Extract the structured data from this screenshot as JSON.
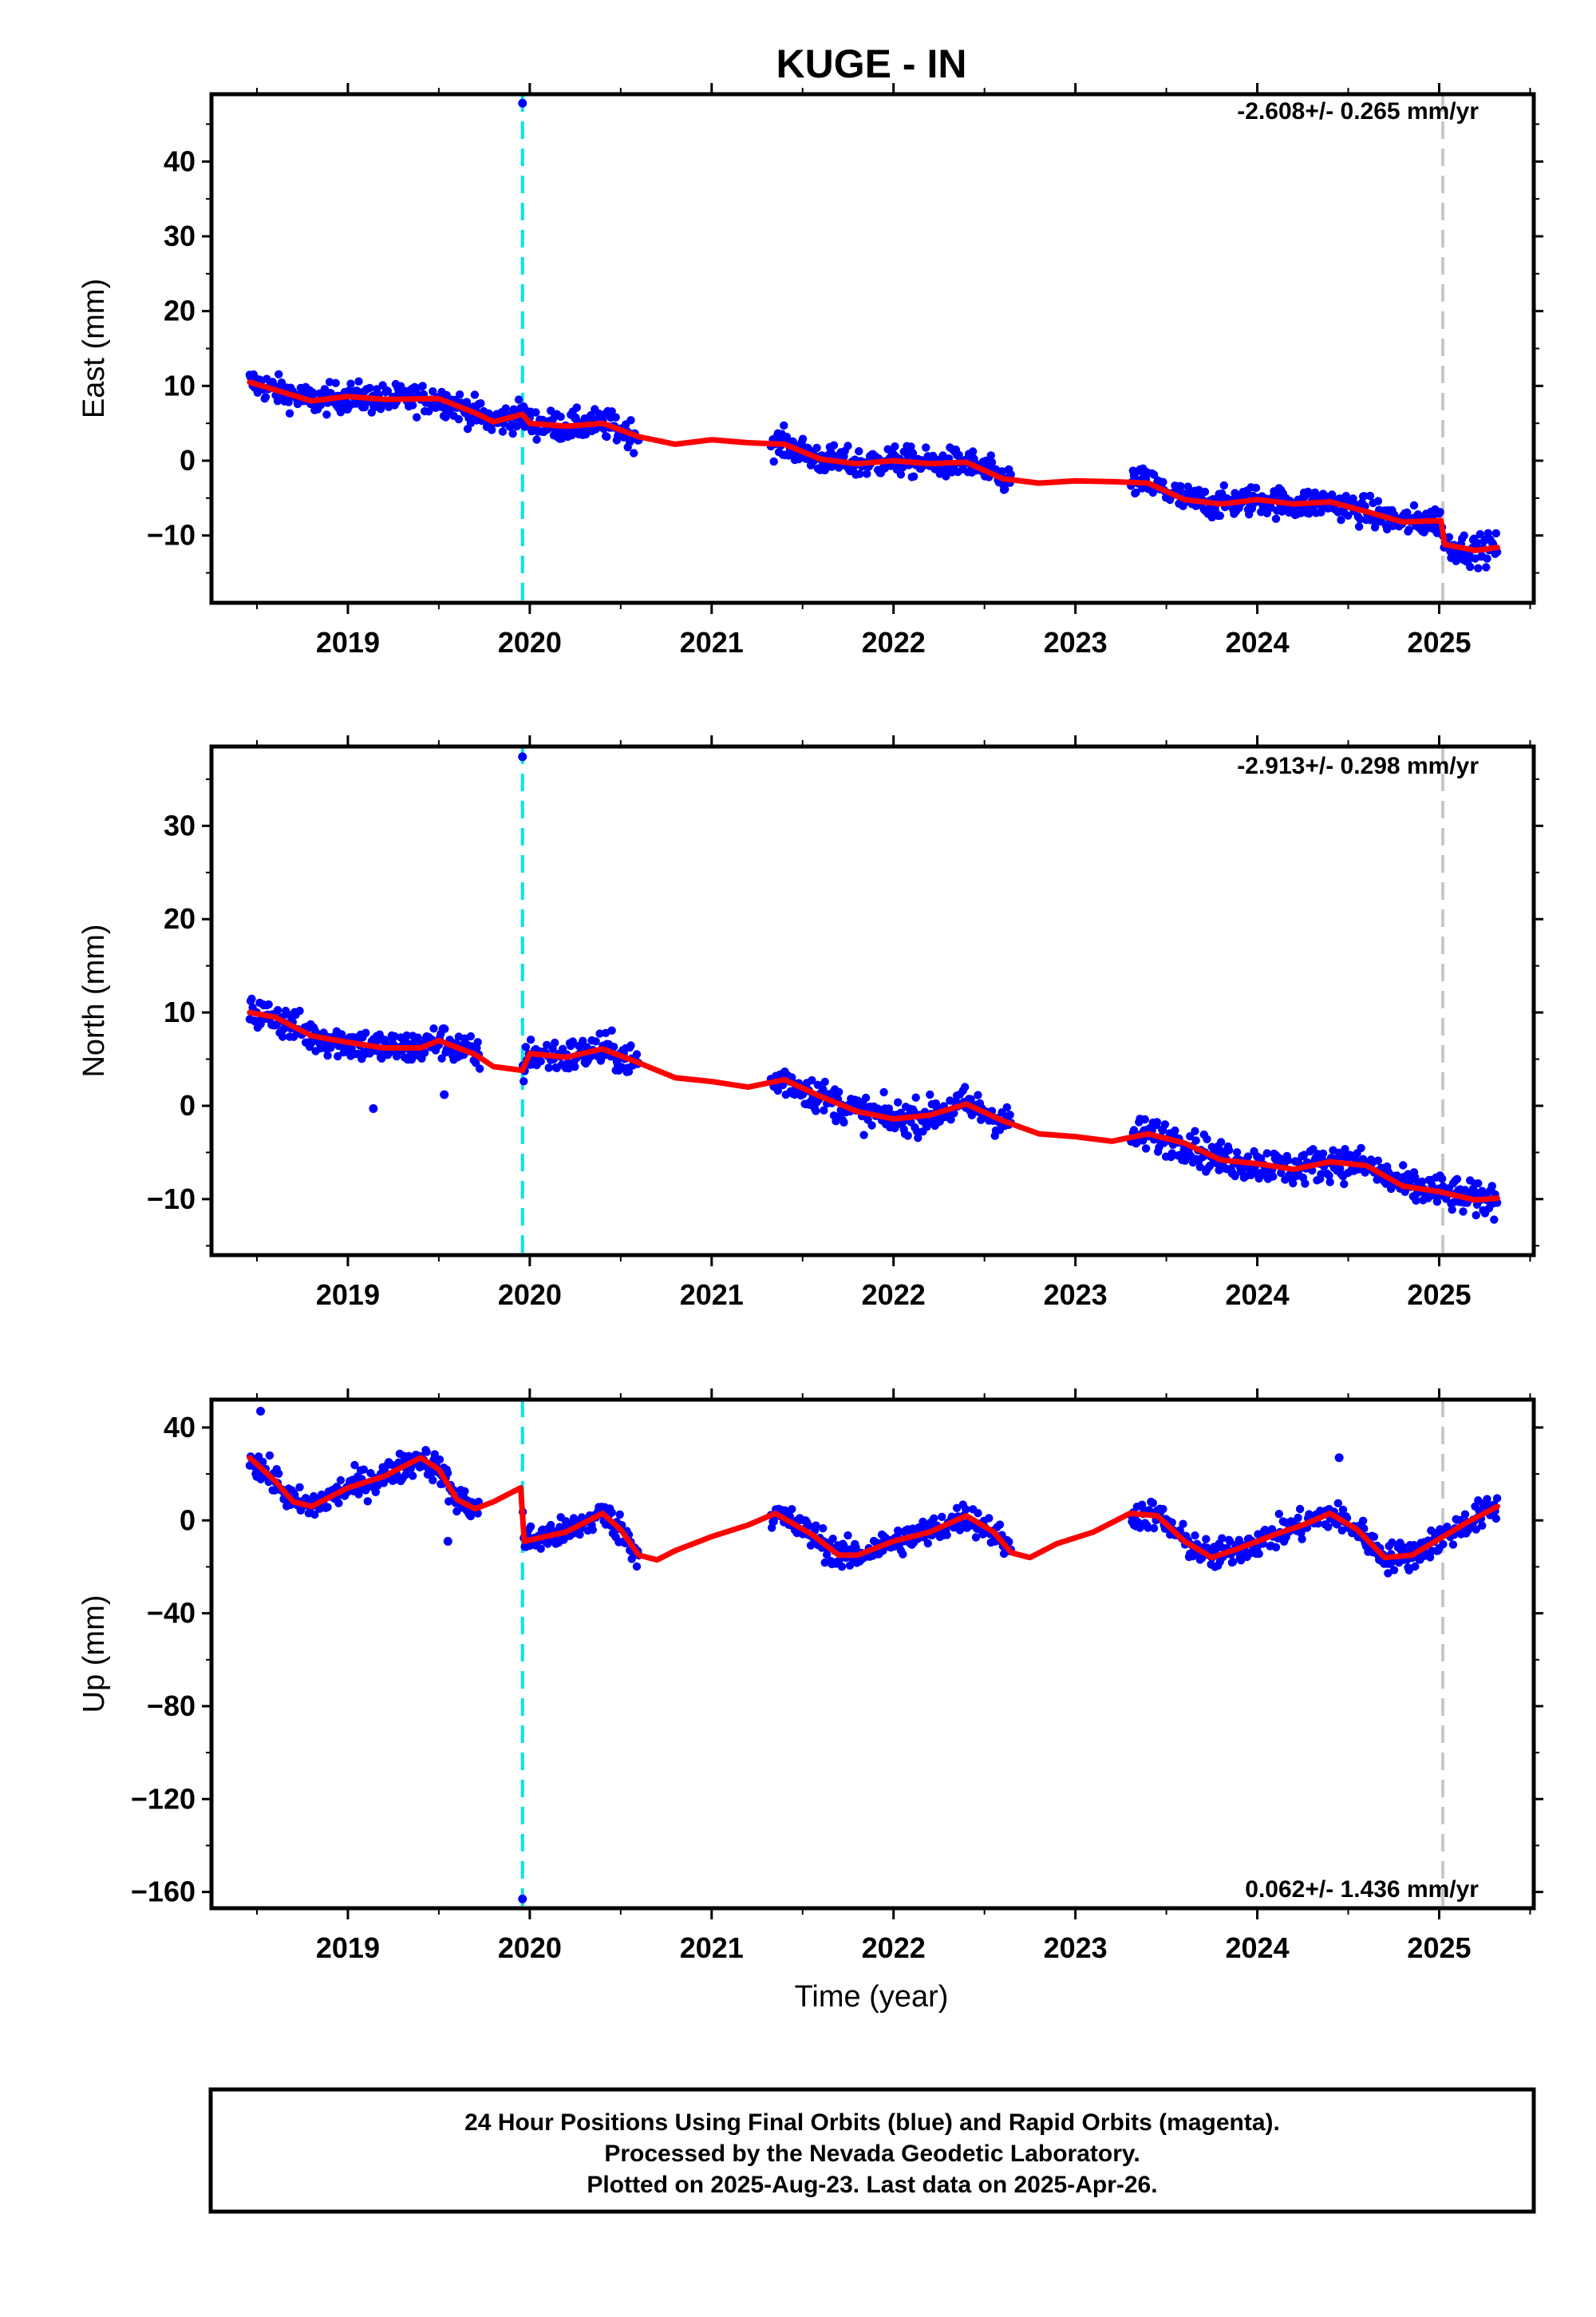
{
  "chart_data": {
    "type": "scatter",
    "title": "KUGE - IN",
    "xlabel": "Time (year)",
    "xlim": [
      2018.25,
      2025.52
    ],
    "x_ticks": [
      "2019",
      "2020",
      "2021",
      "2022",
      "2023",
      "2024",
      "2025"
    ],
    "colors": {
      "final_orbits": "#0000ff",
      "rapid_orbits": "#ff00ff",
      "model": "#ff0000",
      "equipment_change": "#00e5e5",
      "other_event": "#c8c8c8"
    },
    "event_lines": [
      {
        "x": 2019.96,
        "color": "#00e5e5"
      },
      {
        "x": 2025.02,
        "color": "#c8c8c8"
      }
    ],
    "data_span": [
      2018.46,
      2025.32
    ],
    "panels": [
      {
        "name": "east",
        "ylabel": "East (mm)",
        "ylim": [
          -19,
          49
        ],
        "y_ticks": [
          40,
          30,
          20,
          10,
          0,
          -10
        ],
        "y_tick_labels": [
          "40",
          "30",
          "20",
          "10",
          "0",
          "−10"
        ],
        "rate_label": "-2.608+/- 0.265 mm/yr",
        "rate_position": "top-right",
        "scatter_noise_mm": 1.4,
        "gaps": [
          [
            2020.6,
            2021.32
          ],
          [
            2022.65,
            2023.3
          ]
        ],
        "outliers": [
          {
            "x": 2019.96,
            "y": 47.8
          }
        ],
        "model_x": [
          2018.46,
          2018.8,
          2019.0,
          2019.2,
          2019.5,
          2019.7,
          2019.8,
          2019.96,
          2020.0,
          2020.2,
          2020.4,
          2020.6,
          2020.8,
          2021.0,
          2021.2,
          2021.4,
          2021.6,
          2021.8,
          2022.0,
          2022.2,
          2022.4,
          2022.6,
          2022.8,
          2023.0,
          2023.2,
          2023.4,
          2023.6,
          2023.8,
          2024.0,
          2024.2,
          2024.4,
          2024.6,
          2024.8,
          2025.01,
          2025.03,
          2025.2,
          2025.32
        ],
        "model_y": [
          10.5,
          8.0,
          8.6,
          8.2,
          8.3,
          6.4,
          5.2,
          6.2,
          5.0,
          4.6,
          5.0,
          3.2,
          2.2,
          2.8,
          2.4,
          2.2,
          0.2,
          -0.4,
          0.0,
          -0.4,
          -0.2,
          -2.4,
          -3.0,
          -2.7,
          -2.8,
          -3.0,
          -5.2,
          -5.8,
          -5.2,
          -5.8,
          -5.5,
          -6.8,
          -8.2,
          -8.0,
          -11.2,
          -12.0,
          -11.6
        ]
      },
      {
        "name": "north",
        "ylabel": "North (mm)",
        "ylim": [
          -16,
          38.5
        ],
        "y_ticks": [
          30,
          20,
          10,
          0,
          -10
        ],
        "y_tick_labels": [
          "30",
          "20",
          "10",
          "0",
          "−10"
        ],
        "rate_label": "-2.913+/- 0.298 mm/yr",
        "rate_position": "top-right",
        "scatter_noise_mm": 1.3,
        "gaps": [
          [
            2019.73,
            2019.96
          ],
          [
            2020.6,
            2021.32
          ],
          [
            2022.65,
            2023.3
          ]
        ],
        "outliers": [
          {
            "x": 2019.96,
            "y": 37.4
          },
          {
            "x": 2019.14,
            "y": -0.3
          },
          {
            "x": 2019.53,
            "y": 1.2
          }
        ],
        "model_x": [
          2018.46,
          2018.6,
          2018.8,
          2019.0,
          2019.2,
          2019.4,
          2019.5,
          2019.7,
          2019.8,
          2019.96,
          2020.0,
          2020.2,
          2020.4,
          2020.6,
          2020.8,
          2021.0,
          2021.2,
          2021.4,
          2021.6,
          2021.8,
          2022.0,
          2022.2,
          2022.4,
          2022.6,
          2022.8,
          2023.0,
          2023.2,
          2023.4,
          2023.6,
          2023.8,
          2024.0,
          2024.2,
          2024.4,
          2024.6,
          2024.8,
          2025.0,
          2025.2,
          2025.32
        ],
        "model_y": [
          10.0,
          9.5,
          7.5,
          6.8,
          6.2,
          6.2,
          7.0,
          5.5,
          4.2,
          3.8,
          5.6,
          5.2,
          6.1,
          4.6,
          3.0,
          2.6,
          2.0,
          2.8,
          1.0,
          -0.6,
          -1.4,
          -1.0,
          0.2,
          -1.6,
          -3.0,
          -3.3,
          -3.8,
          -3.0,
          -4.0,
          -5.8,
          -6.2,
          -6.8,
          -6.0,
          -6.4,
          -8.6,
          -9.2,
          -10.1,
          -9.9
        ]
      },
      {
        "name": "up",
        "ylabel": "Up (mm)",
        "ylim": [
          -167,
          52
        ],
        "y_ticks": [
          40,
          0,
          -40,
          -80,
          -120,
          -160
        ],
        "y_tick_labels": [
          "40",
          "0",
          "−40",
          "−80",
          "−120",
          "−160"
        ],
        "rate_label": "0.062+/- 1.436 mm/yr",
        "rate_position": "bottom-right",
        "scatter_noise_mm": 4.5,
        "gaps": [
          [
            2019.72,
            2019.96
          ],
          [
            2020.6,
            2021.32
          ],
          [
            2022.65,
            2023.3
          ]
        ],
        "outliers": [
          {
            "x": 2019.96,
            "y": -163.0
          },
          {
            "x": 2018.52,
            "y": 47.0
          },
          {
            "x": 2019.55,
            "y": -9.0
          },
          {
            "x": 2024.45,
            "y": 27.0
          }
        ],
        "model_x": [
          2018.46,
          2018.6,
          2018.7,
          2018.8,
          2019.0,
          2019.2,
          2019.4,
          2019.5,
          2019.6,
          2019.7,
          2019.8,
          2019.95,
          2019.97,
          2020.2,
          2020.4,
          2020.5,
          2020.6,
          2020.7,
          2020.8,
          2021.0,
          2021.2,
          2021.35,
          2021.55,
          2021.7,
          2021.8,
          2022.0,
          2022.2,
          2022.4,
          2022.55,
          2022.65,
          2022.75,
          2022.9,
          2023.1,
          2023.3,
          2023.45,
          2023.6,
          2023.75,
          2023.9,
          2024.1,
          2024.25,
          2024.4,
          2024.55,
          2024.7,
          2024.85,
          2025.0,
          2025.15,
          2025.32
        ],
        "model_y": [
          27,
          17,
          8,
          6,
          14,
          19,
          27,
          22,
          9,
          5,
          8,
          14,
          -9,
          -5,
          3,
          -4,
          -15,
          -17,
          -13,
          -7,
          -2,
          3,
          -6,
          -15,
          -15,
          -9,
          -5,
          2,
          -5,
          -14,
          -16,
          -10,
          -5,
          3,
          2,
          -9,
          -16,
          -12,
          -6,
          -2,
          3,
          -4,
          -16,
          -15,
          -8,
          -1,
          6
        ]
      }
    ],
    "footer": {
      "line1": "24 Hour Positions Using Final Orbits (blue) and Rapid Orbits (magenta).",
      "line2": "Processed by the Nevada Geodetic Laboratory.",
      "line3": "Plotted on 2025-Aug-23. Last data on 2025-Apr-26."
    }
  }
}
